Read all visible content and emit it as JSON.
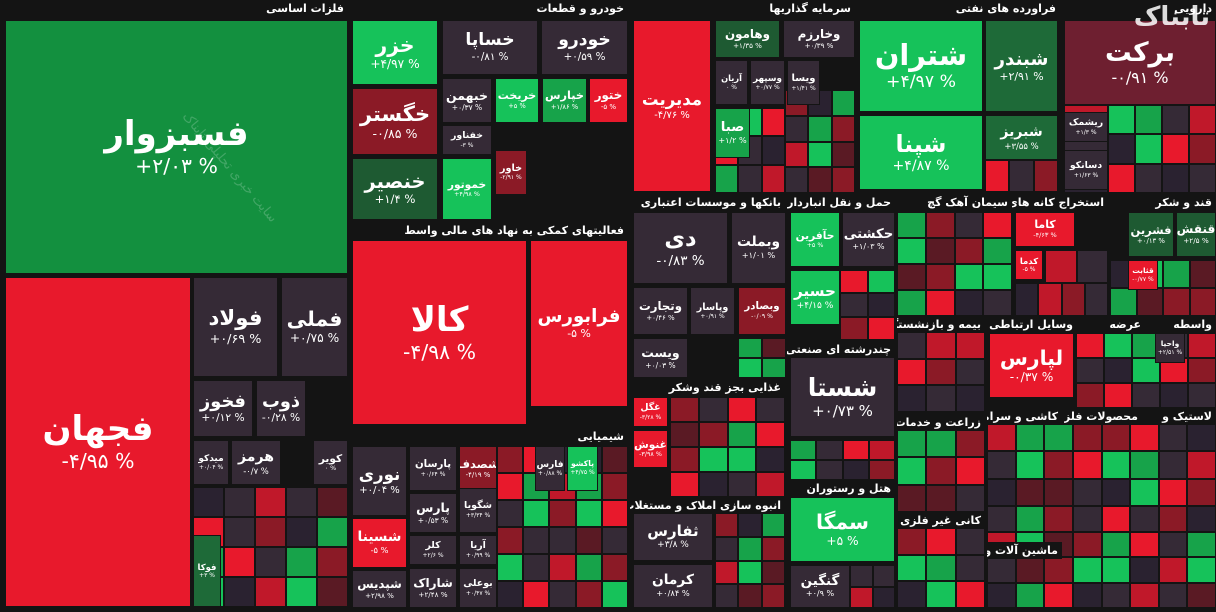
{
  "watermark": "تابناک",
  "watermark_text": "سایت خبری تحلیلی تابناک",
  "sectors": [
    {
      "title": "فلزات اساسی",
      "tiles": [
        {
          "name": "فسبزوار",
          "change": "+۲/۰۳ %",
          "color": "#13903f"
        },
        {
          "name": "فجهان",
          "change": "-۴/۹۵ %",
          "color": "#e8192c"
        },
        {
          "name": "فولاد",
          "change": "+۰/۶۹ %",
          "color": "#352a36"
        },
        {
          "name": "فملی",
          "change": "+۰/۷۵ %",
          "color": "#352a36"
        },
        {
          "name": "فخوز",
          "change": "+۰/۱۲ %",
          "color": "#352a36"
        },
        {
          "name": "ذوب",
          "change": "-۰/۲۸ %",
          "color": "#352a36"
        },
        {
          "name": "میدکو",
          "change": "+۰/۰۴ %",
          "color": "#352a36"
        },
        {
          "name": "هرمز",
          "change": "-۰/۷ %",
          "color": "#352a36"
        },
        {
          "name": "کویر",
          "change": "۰ %",
          "color": "#352a36"
        },
        {
          "name": "فوکا",
          "change": "+۳ %",
          "color": "#1e6a38"
        }
      ]
    },
    {
      "title": "خودرو و قطعات",
      "tiles": [
        {
          "name": "خزر",
          "change": "+۴/۹۷ %",
          "color": "#16c25a"
        },
        {
          "name": "خساپا",
          "change": "-۰/۸۱ %",
          "color": "#352a36"
        },
        {
          "name": "خودرو",
          "change": "+۰/۵۹ %",
          "color": "#352a36"
        },
        {
          "name": "خگستر",
          "change": "-۰/۸۵ %",
          "color": "#8b1a26"
        },
        {
          "name": "خبهمن",
          "change": "+۰/۳۷ %",
          "color": "#352a36"
        },
        {
          "name": "خریخت",
          "change": "+۵ %",
          "color": "#16c25a"
        },
        {
          "name": "خپارس",
          "change": "+۱/۸۶ %",
          "color": "#17a34a"
        },
        {
          "name": "ختور",
          "change": "-۵ %",
          "color": "#e8192c"
        },
        {
          "name": "خفناور",
          "change": "-۳ %",
          "color": "#352a36"
        },
        {
          "name": "خاور",
          "change": "-۲/۹۱ %",
          "color": "#8b1a26"
        },
        {
          "name": "خنصیر",
          "change": "+۱/۴ %",
          "color": "#1e5a32"
        },
        {
          "name": "خموتور",
          "change": "+۴/۹۸ %",
          "color": "#16c25a"
        }
      ]
    },
    {
      "title": "سرمایه گذاریها",
      "tiles": [
        {
          "name": "مدیریت",
          "change": "-۴/۷۶ %",
          "color": "#e8192c"
        },
        {
          "name": "وهامون",
          "change": "+۱/۳۵ %",
          "color": "#1e5a32"
        },
        {
          "name": "وخارزم",
          "change": "+۰/۳۹ %",
          "color": "#352a36"
        },
        {
          "name": "آریان",
          "change": "۰ %",
          "color": "#352a36"
        },
        {
          "name": "وسپهر",
          "change": "+۰/۷۷ %",
          "color": "#352a36"
        },
        {
          "name": "ویسا",
          "change": "+۱/۴۱ %",
          "color": "#352a36"
        },
        {
          "name": "صبا",
          "change": "+۱/۲ %",
          "color": "#17a34a"
        }
      ]
    },
    {
      "title": "فراورده های نفتی",
      "tiles": [
        {
          "name": "شتران",
          "change": "+۴/۹۷ %",
          "color": "#16c25a"
        },
        {
          "name": "شبندر",
          "change": "+۲/۹۱ %",
          "color": "#1e6a38"
        },
        {
          "name": "شپنا",
          "change": "+۴/۸۷ %",
          "color": "#16c25a"
        },
        {
          "name": "شبریز",
          "change": "+۳/۵۵ %",
          "color": "#1e6a38"
        }
      ]
    },
    {
      "title": "دارویی",
      "tiles": [
        {
          "name": "برکت",
          "change": "-۰/۹۱ %",
          "color": "#6e1f30"
        },
        {
          "name": "ریشمک",
          "change": "+۱/۳ %",
          "color": "#352a36"
        },
        {
          "name": "دسانکو",
          "change": "+۱/۶۳ %",
          "color": "#352a36"
        }
      ]
    },
    {
      "title": "فعالیتهای کمکی به نهاد های مالی واسط",
      "tiles": [
        {
          "name": "کالا",
          "change": "-۴/۹۸ %",
          "color": "#e8192c"
        },
        {
          "name": "فرابورس",
          "change": "-۵ %",
          "color": "#e8192c"
        }
      ]
    },
    {
      "title": "شیمیایی",
      "tiles": [
        {
          "name": "نوری",
          "change": "+۰/۰۴ %",
          "color": "#352a36"
        },
        {
          "name": "پارسان",
          "change": "+۰/۶۴ %",
          "color": "#352a36"
        },
        {
          "name": "شصدف",
          "change": "-۴/۱۹ %",
          "color": "#8b1a26"
        },
        {
          "name": "فارس",
          "change": "+۰/۸۸ %",
          "color": "#352a36"
        },
        {
          "name": "پاکشو",
          "change": "+۴/۷۵ %",
          "color": "#16c25a"
        },
        {
          "name": "پارس",
          "change": "+۰/۵۳ %",
          "color": "#352a36"
        },
        {
          "name": "شگویا",
          "change": "+۳/۳۴ %",
          "color": "#352a36"
        },
        {
          "name": "شسینا",
          "change": "-۵ %",
          "color": "#e8192c"
        },
        {
          "name": "کلر",
          "change": "+۲/۶ %",
          "color": "#352a36"
        },
        {
          "name": "آریا",
          "change": "+۰/۹۹ %",
          "color": "#352a36"
        },
        {
          "name": "شپدیس",
          "change": "+۲/۹۸ %",
          "color": "#352a36"
        },
        {
          "name": "شاراک",
          "change": "+۲/۴۸ %",
          "color": "#352a36"
        },
        {
          "name": "بوعلی",
          "change": "+۰/۴۷ %",
          "color": "#352a36"
        }
      ]
    },
    {
      "title": "بانکها و موسسات اعتباری",
      "tiles": [
        {
          "name": "دی",
          "change": "-۰/۸۳ %",
          "color": "#352a36"
        },
        {
          "name": "وبملت",
          "change": "+۱/۰۱ %",
          "color": "#352a36"
        },
        {
          "name": "وتجارت",
          "change": "+۰/۴۶ %",
          "color": "#352a36"
        },
        {
          "name": "وپاسار",
          "change": "+۰/۹۱ %",
          "color": "#352a36"
        },
        {
          "name": "وبصادر",
          "change": "-۰/۰۹ %",
          "color": "#8b1a26"
        },
        {
          "name": "ویست",
          "change": "+۰/۰۳ %",
          "color": "#352a36"
        }
      ]
    },
    {
      "title": "غذایی بجز قند وشکر",
      "tiles": [
        {
          "name": "غگل",
          "change": "-۳/۲۸ %",
          "color": "#e8192c"
        },
        {
          "name": "غنوش",
          "change": "-۳/۹۸ %",
          "color": "#e8192c"
        }
      ]
    },
    {
      "title": "انبوه سازی املاک و مستغلات",
      "tiles": [
        {
          "name": "ثفارس",
          "change": "+۳/۸ %",
          "color": "#352a36"
        },
        {
          "name": "کرمان",
          "change": "+۰/۸۴ %",
          "color": "#352a36"
        }
      ]
    },
    {
      "title": "حمل و نقل انبارداری و",
      "tiles": [
        {
          "name": "حآفرین",
          "change": "+۵ %",
          "color": "#16c25a"
        },
        {
          "name": "حکشتی",
          "change": "+۱/۰۳ %",
          "color": "#352a36"
        },
        {
          "name": "حسیر",
          "change": "+۴/۱۵ %",
          "color": "#16c25a"
        }
      ]
    },
    {
      "title": "چندرشته ای صنعتی",
      "tiles": [
        {
          "name": "شستا",
          "change": "+۰/۷۳ %",
          "color": "#352a36"
        }
      ]
    },
    {
      "title": "هتل و رستوران",
      "tiles": [
        {
          "name": "سمگا",
          "change": "+۵ %",
          "color": "#16c25a"
        },
        {
          "name": "گنگین",
          "change": "+۰/۹ %",
          "color": "#352a36"
        }
      ]
    },
    {
      "title": "سیمان آهک گچ",
      "tiles": []
    },
    {
      "title": "استخراج کانه های",
      "tiles": [
        {
          "name": "کاما",
          "change": "-۴/۶۳ %",
          "color": "#e8192c"
        },
        {
          "name": "کدما",
          "change": "-۵ %",
          "color": "#e8192c"
        }
      ]
    },
    {
      "title": "قند و شکر",
      "tiles": [
        {
          "name": "فشرین",
          "change": "+۰/۱۳ %",
          "color": "#1e5a32"
        },
        {
          "name": "قثابت",
          "change": "-۰/۷۷ %",
          "color": "#e8192c"
        },
        {
          "name": "قنقش",
          "change": "+۲/۵ %",
          "color": "#1e5a32"
        }
      ]
    },
    {
      "title": "بیمه و بازنشستگی",
      "tiles": []
    },
    {
      "title": "وسایل ارتباطی",
      "tiles": [
        {
          "name": "لپارس",
          "change": "-۰/۳۷ %",
          "color": "#e8192c"
        }
      ]
    },
    {
      "title": "عرضه",
      "tiles": []
    },
    {
      "title": "واسطه",
      "tiles": [
        {
          "name": "واحیا",
          "change": "+۲/۵۱ %",
          "color": "#352a36"
        }
      ]
    },
    {
      "title": "زراعت و خدمات",
      "tiles": []
    },
    {
      "title": "کاشی و سرامیک",
      "tiles": []
    },
    {
      "title": "محصولات فلزی",
      "tiles": []
    },
    {
      "title": "لاستیک و",
      "tiles": []
    },
    {
      "title": "کانی غیر فلزی",
      "tiles": []
    },
    {
      "title": "ماشین آلات و",
      "tiles": []
    }
  ]
}
